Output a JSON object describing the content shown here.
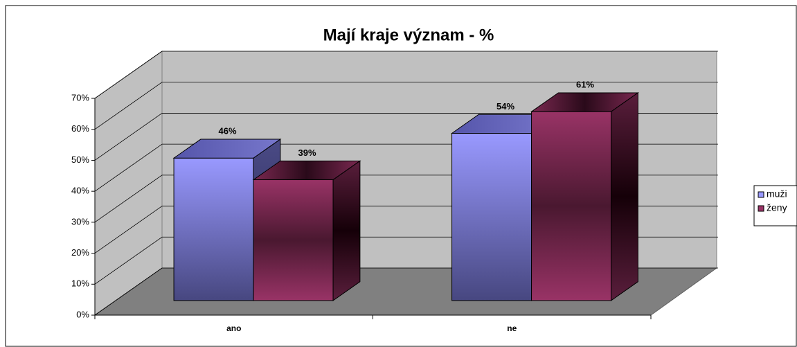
{
  "chart_data": {
    "type": "bar3d",
    "title": "Mají kraje význam - %",
    "categories": [
      "ano",
      "ne"
    ],
    "series": [
      {
        "name": "muži",
        "color": "#9999ff",
        "values": [
          46,
          54
        ],
        "value_labels": [
          "46%",
          "54%"
        ]
      },
      {
        "name": "ženy",
        "color": "#993366",
        "values": [
          39,
          61
        ],
        "value_labels": [
          "39%",
          "61%"
        ]
      }
    ],
    "ylim": [
      0,
      70
    ],
    "yticks": [
      {
        "value": 0,
        "label": "0%"
      },
      {
        "value": 10,
        "label": "10%"
      },
      {
        "value": 20,
        "label": "20%"
      },
      {
        "value": 30,
        "label": "30%"
      },
      {
        "value": 40,
        "label": "40%"
      },
      {
        "value": 50,
        "label": "50%"
      },
      {
        "value": 60,
        "label": "60%"
      },
      {
        "value": 70,
        "label": "70%"
      }
    ],
    "grid": true,
    "legend": "right"
  }
}
